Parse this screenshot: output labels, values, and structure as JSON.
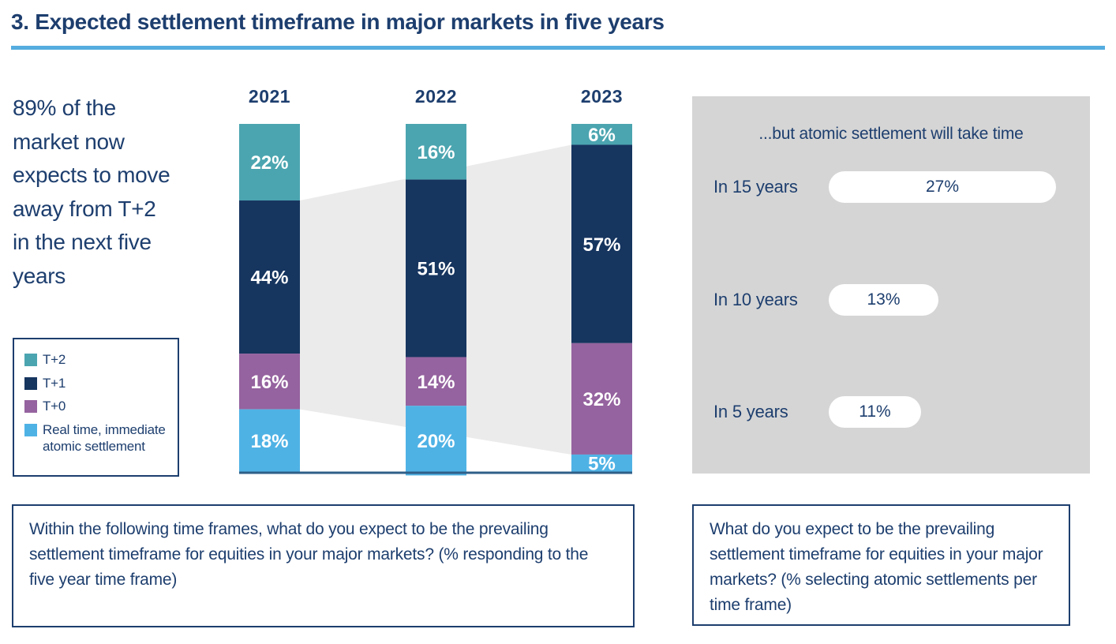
{
  "header": {
    "title": "3. Expected settlement timeframe in major markets in five years",
    "rule_color": "#54ACDF"
  },
  "highlight": {
    "text": "89% of the market now expects to move away from T+2 in the next five years"
  },
  "legend": {
    "items": [
      {
        "label": "T+2",
        "color": "#4BA5B0"
      },
      {
        "label": "T+1",
        "color": "#16355F"
      },
      {
        "label": "T+0",
        "color": "#95639F"
      },
      {
        "label": "Real time, immediate atomic settlement",
        "color": "#4FB2E5"
      }
    ]
  },
  "chart_data": [
    {
      "type": "bar",
      "subtype": "stacked-vertical-100pct",
      "title": "",
      "categories": [
        "2021",
        "2022",
        "2023"
      ],
      "series": [
        {
          "name": "T+2",
          "color": "#4BA5B0",
          "values": [
            22,
            16,
            6
          ]
        },
        {
          "name": "T+1",
          "color": "#16355F",
          "values": [
            44,
            51,
            57
          ]
        },
        {
          "name": "T+0",
          "color": "#95639F",
          "values": [
            16,
            14,
            32
          ]
        },
        {
          "name": "Real time, immediate atomic settlement",
          "color": "#4FB2E5",
          "values": [
            18,
            20,
            5
          ]
        }
      ],
      "value_suffix": "%",
      "ylim": [
        0,
        100
      ],
      "grid": false,
      "legend_position": "left",
      "label_color": "#ffffff",
      "category_label_color": "#1D3E6E",
      "baseline_color": "#2F5F88",
      "flow_band": {
        "covers_series": [
          "T+1",
          "T+0"
        ],
        "color": "#EBEBEB"
      }
    },
    {
      "type": "bar",
      "subtype": "horizontal-pills",
      "title": "...but atomic settlement will take time",
      "categories": [
        "In 15 years",
        "In 10 years",
        "In 5 years"
      ],
      "values": [
        27,
        13,
        11
      ],
      "value_suffix": "%",
      "pill_color": "#ffffff",
      "panel_color": "#D5D5D5"
    }
  ],
  "questions": {
    "left": "Within the following time frames, what do you expect to be the prevailing settlement timeframe for equities in your major markets? (% responding to the five year time frame)",
    "right": "What do you expect to be the prevailing settlement timeframe for equities in your major markets? (% selecting atomic settlements per time frame)"
  }
}
